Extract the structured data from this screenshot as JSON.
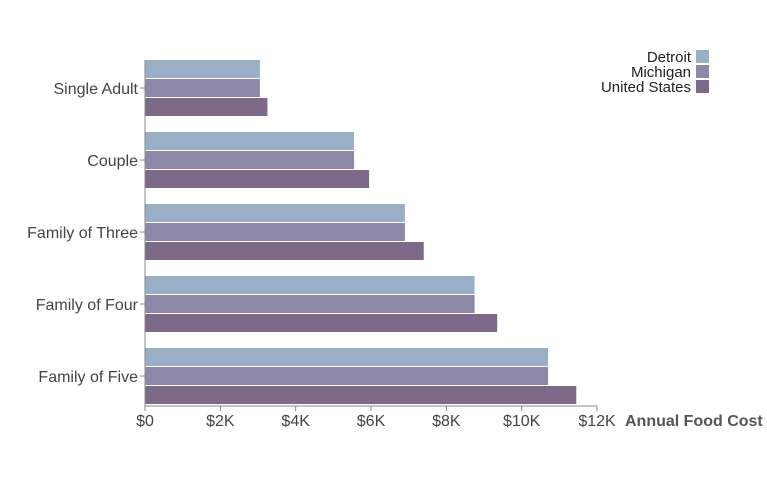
{
  "chart_data": {
    "type": "bar",
    "orientation": "horizontal",
    "categories": [
      "Single Adult",
      "Couple",
      "Family of Three",
      "Family of Four",
      "Family of Five"
    ],
    "series": [
      {
        "name": "Detroit",
        "color": "#9aaec6",
        "values": [
          3050,
          5550,
          6900,
          8750,
          10700
        ]
      },
      {
        "name": "Michigan",
        "color": "#8c88a6",
        "values": [
          3050,
          5550,
          6900,
          8750,
          10700
        ]
      },
      {
        "name": "United States",
        "color": "#7d6a89",
        "values": [
          3250,
          5950,
          7400,
          9350,
          11450
        ]
      }
    ],
    "xlabel": "Annual Food Cost",
    "xlim": [
      0,
      12000
    ],
    "x_ticks": [
      0,
      2000,
      4000,
      6000,
      8000,
      10000,
      12000
    ],
    "x_tick_labels": [
      "$0",
      "$2K",
      "$4K",
      "$6K",
      "$8K",
      "$10K",
      "$12K"
    ],
    "legend_position": "top-right",
    "grid": false
  }
}
